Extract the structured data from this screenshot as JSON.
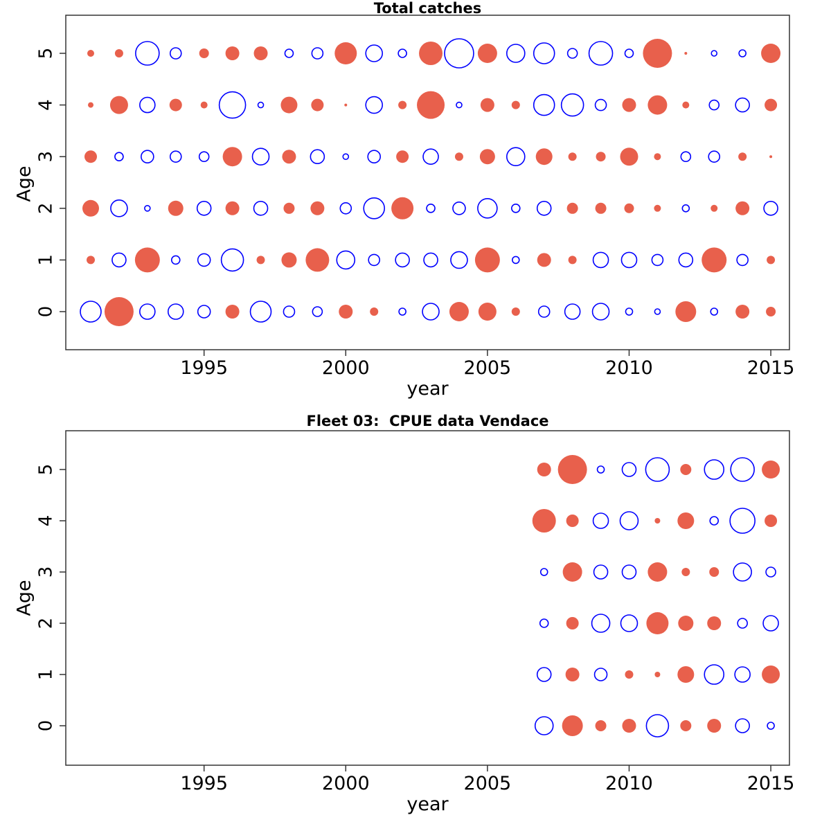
{
  "colors": {
    "filled_bubble": "#e8604c",
    "open_bubble_stroke": "#0000ff",
    "axis_line": "#333333",
    "text": "#000000",
    "background": "#ffffff"
  },
  "encoding_note": "bubble value: negative = solid red-orange filled circle, positive = open blue circle; magnitude = circle radius in px",
  "chart_data": [
    {
      "type": "bubble",
      "title": "Total catches",
      "xlabel": "year",
      "ylabel": "Age",
      "x_ticks": [
        1995,
        2000,
        2005,
        2010,
        2015
      ],
      "y_ticks": [
        0,
        1,
        2,
        3,
        4,
        5
      ],
      "years": [
        1991,
        1992,
        1993,
        1994,
        1995,
        1996,
        1997,
        1998,
        1999,
        2000,
        2001,
        2002,
        2003,
        2004,
        2005,
        2006,
        2007,
        2008,
        2009,
        2010,
        2011,
        2012,
        2013,
        2014,
        2015
      ],
      "series": [
        {
          "age": 0,
          "values": [
            15,
            -21,
            11,
            11,
            9,
            -10,
            15,
            8,
            7,
            -10,
            -6,
            5,
            12,
            -14,
            -13,
            -6,
            8,
            11,
            12,
            5,
            4,
            -15,
            5,
            -10,
            -7
          ]
        },
        {
          "age": 1,
          "values": [
            -6,
            10,
            -18,
            6,
            9,
            16,
            -6,
            -11,
            -17,
            13,
            8,
            10,
            10,
            12,
            -18,
            5,
            -10,
            -6,
            11,
            11,
            8,
            10,
            -18,
            8,
            -6
          ]
        },
        {
          "age": 2,
          "values": [
            -12,
            12,
            4,
            -11,
            10,
            -10,
            10,
            -8,
            -10,
            8,
            15,
            -16,
            6,
            9,
            14,
            6,
            10,
            -8,
            -8,
            -7,
            -5,
            5,
            -5,
            -10,
            10
          ]
        },
        {
          "age": 3,
          "values": [
            -9,
            6,
            9,
            8,
            7,
            -14,
            12,
            -10,
            10,
            4,
            9,
            -9,
            11,
            -6,
            -11,
            13,
            -12,
            -6,
            -7,
            -13,
            -5,
            7,
            8,
            -6,
            -2
          ]
        },
        {
          "age": 4,
          "values": [
            -4,
            -13,
            11,
            -9,
            -5,
            19,
            4,
            -12,
            -9,
            -2,
            12,
            -6,
            -20,
            4,
            -10,
            -6,
            15,
            16,
            8,
            -10,
            -14,
            -5,
            7,
            10,
            -9
          ]
        },
        {
          "age": 5,
          "values": [
            -5,
            -6,
            17,
            8,
            -7,
            -10,
            -10,
            6,
            8,
            -16,
            12,
            6,
            -17,
            21,
            -14,
            13,
            15,
            7,
            17,
            6,
            -21,
            -2,
            4,
            5,
            -14
          ]
        }
      ]
    },
    {
      "type": "bubble",
      "title": "Fleet 03:  CPUE data Vendace",
      "xlabel": "year",
      "ylabel": "Age",
      "x_ticks": [
        1995,
        2000,
        2005,
        2010,
        2015
      ],
      "y_ticks": [
        0,
        1,
        2,
        3,
        4,
        5
      ],
      "years": [
        2007,
        2008,
        2009,
        2010,
        2011,
        2012,
        2013,
        2014,
        2015
      ],
      "series": [
        {
          "age": 0,
          "values": [
            13,
            -15,
            -8,
            -10,
            16,
            -8,
            -10,
            10,
            5
          ]
        },
        {
          "age": 1,
          "values": [
            10,
            -10,
            9,
            -6,
            -4,
            -12,
            14,
            11,
            -13
          ]
        },
        {
          "age": 2,
          "values": [
            6,
            -9,
            13,
            12,
            -16,
            -11,
            -10,
            7,
            11
          ]
        },
        {
          "age": 3,
          "values": [
            5,
            -14,
            10,
            10,
            -14,
            -6,
            -7,
            13,
            7
          ]
        },
        {
          "age": 4,
          "values": [
            -17,
            -9,
            11,
            13,
            -4,
            -12,
            6,
            18,
            -9
          ]
        },
        {
          "age": 5,
          "values": [
            -10,
            -21,
            5,
            10,
            17,
            -8,
            14,
            17,
            -13
          ]
        }
      ]
    }
  ]
}
